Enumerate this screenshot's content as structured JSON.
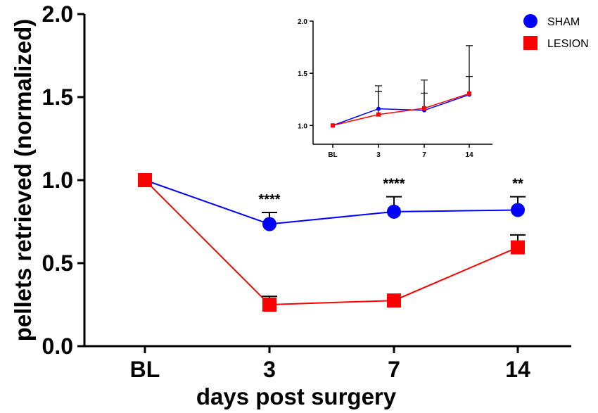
{
  "chart_data": [
    {
      "id": "main",
      "type": "line",
      "categories": [
        "BL",
        "3",
        "7",
        "14"
      ],
      "xlabel": "days post surgery",
      "ylabel": "pellets retrieved (normalized)",
      "ylim": [
        0,
        2.0
      ],
      "yticks": [
        "0.0",
        "0.5",
        "1.0",
        "1.5",
        "2.0"
      ],
      "grid": false,
      "series": [
        {
          "name": "SHAM",
          "color": "#0000ff",
          "marker": "circle",
          "values": [
            1.0,
            0.735,
            0.81,
            0.82
          ],
          "error": [
            0.0,
            0.07,
            0.09,
            0.08
          ]
        },
        {
          "name": "LESION",
          "color": "#ff0000",
          "marker": "square",
          "values": [
            1.0,
            0.25,
            0.275,
            0.595
          ],
          "error": [
            0.0,
            0.05,
            0.0,
            0.075
          ]
        }
      ],
      "annotations": [
        {
          "category": "3",
          "text": "****"
        },
        {
          "category": "7",
          "text": "****"
        },
        {
          "category": "14",
          "text": "**"
        }
      ],
      "legend": {
        "placement": "top-right",
        "entries": [
          "SHAM",
          "LESION"
        ]
      }
    },
    {
      "id": "inset",
      "type": "line",
      "categories": [
        "BL",
        "3",
        "7",
        "14"
      ],
      "ylim": [
        0.82,
        2.0
      ],
      "yticks": [
        "1.0",
        "1.5",
        "2.0"
      ],
      "grid": false,
      "series": [
        {
          "name": "SHAM",
          "color": "#0000ff",
          "marker": "circle",
          "values": [
            1.0,
            1.16,
            1.145,
            1.295
          ],
          "error": [
            0.0,
            0.22,
            0.29,
            0.47
          ]
        },
        {
          "name": "LESION",
          "color": "#ff0000",
          "marker": "square",
          "values": [
            1.0,
            1.105,
            1.165,
            1.305
          ],
          "error": [
            0.0,
            0.22,
            0.145,
            0.165
          ]
        }
      ]
    }
  ]
}
